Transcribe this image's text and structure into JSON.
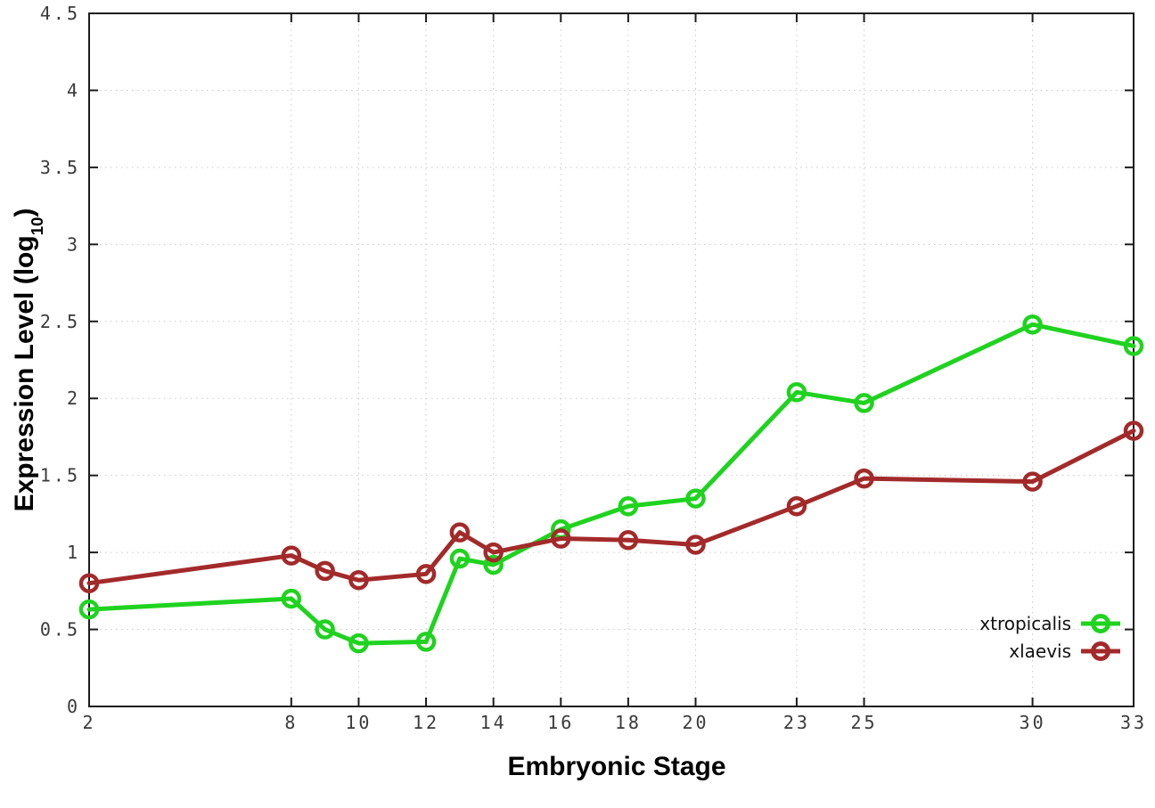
{
  "chart_data": {
    "type": "line",
    "xlabel": "Embryonic Stage",
    "ylabel_main": "Expression Level (log",
    "ylabel_sub": "10",
    "ylabel_close": ")",
    "x": [
      2,
      8,
      9,
      10,
      12,
      13,
      14,
      16,
      18,
      20,
      23,
      25,
      30,
      33
    ],
    "series": [
      {
        "name": "xtropicalis",
        "color": "#1fd31f",
        "values": [
          0.63,
          0.7,
          0.5,
          0.41,
          0.42,
          0.96,
          0.92,
          1.15,
          1.3,
          1.35,
          2.04,
          1.97,
          2.48,
          2.34
        ]
      },
      {
        "name": "xlaevis",
        "color": "#a32a2a",
        "values": [
          0.8,
          0.98,
          0.88,
          0.82,
          0.86,
          1.13,
          1.0,
          1.09,
          1.08,
          1.05,
          1.3,
          1.48,
          1.46,
          1.79
        ]
      }
    ],
    "xlim": [
      2,
      33
    ],
    "ylim": [
      0,
      4.5
    ],
    "xtick_values": [
      2,
      8,
      10,
      12,
      14,
      16,
      18,
      20,
      23,
      25,
      30,
      33
    ],
    "xtick_labels": [
      "2",
      "8",
      "10",
      "12",
      "14",
      "16",
      "18",
      "20",
      "23",
      "25",
      "30",
      "33"
    ],
    "ytick_values": [
      0,
      0.5,
      1,
      1.5,
      2,
      2.5,
      3,
      3.5,
      4,
      4.5
    ],
    "ytick_labels": [
      "0",
      "0.5",
      "1",
      "1.5",
      "2",
      "2.5",
      "3",
      "3.5",
      "4",
      "4.5"
    ],
    "grid": true,
    "legend_position": "inside-bottom-right",
    "axis_color": "#1c1c1c",
    "grid_color": "#c9c9c9",
    "tick_label_color": "#3a3a3a",
    "background_color": "#ffffff"
  }
}
